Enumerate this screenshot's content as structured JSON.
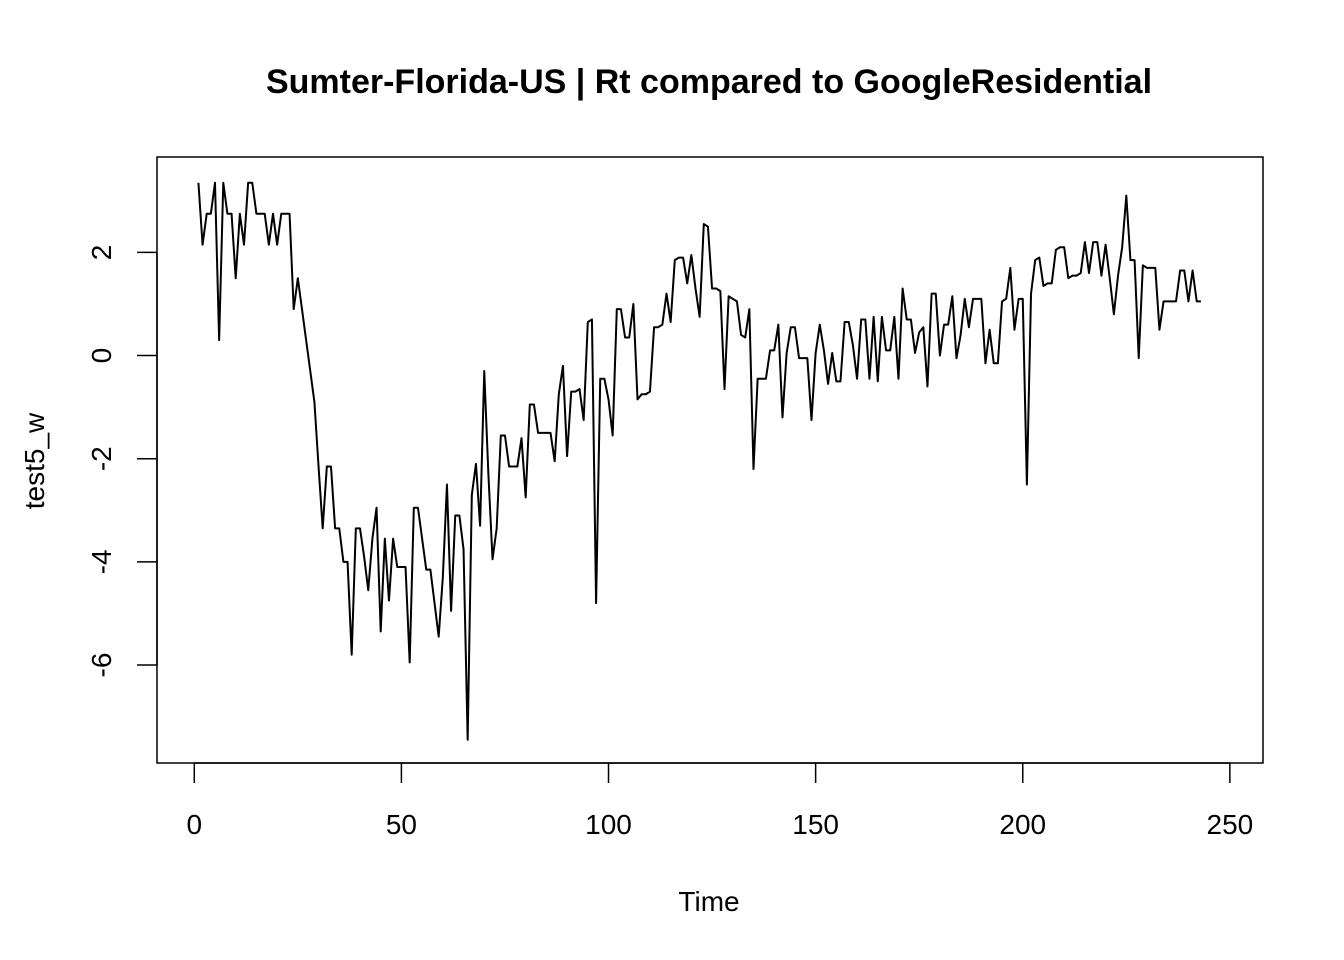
{
  "chart_data": {
    "type": "line",
    "title": "Sumter-Florida-US | Rt compared to GoogleResidential",
    "xlabel": "Time",
    "ylabel": "test5_w",
    "xlim": [
      -9,
      258
    ],
    "ylim": [
      -7.9,
      3.85
    ],
    "x_ticks": [
      0,
      50,
      100,
      150,
      200,
      250
    ],
    "y_ticks": [
      -6,
      -4,
      -2,
      0,
      2
    ],
    "x_tick_labels": [
      "0",
      "50",
      "100",
      "150",
      "200",
      "250"
    ],
    "y_tick_labels": [
      "-6",
      "-4",
      "-2",
      "0",
      "2"
    ],
    "grid": false,
    "legend": "none",
    "line_color": "#000000",
    "series": [
      {
        "values": [
          3.35,
          2.15,
          2.75,
          2.75,
          3.35,
          0.3,
          3.35,
          2.75,
          2.75,
          1.5,
          2.75,
          2.15,
          3.35,
          3.35,
          2.75,
          2.75,
          2.75,
          2.15,
          2.75,
          2.15,
          2.75,
          2.75,
          2.75,
          0.9,
          1.5,
          0.9,
          0.3,
          -0.3,
          -0.9,
          -2.15,
          -3.35,
          -2.15,
          -2.15,
          -3.35,
          -3.35,
          -4.0,
          -4.0,
          -5.8,
          -3.35,
          -3.35,
          -3.9,
          -4.55,
          -3.55,
          -2.95,
          -5.35,
          -3.55,
          -4.75,
          -3.55,
          -4.1,
          -4.1,
          -4.1,
          -5.95,
          -2.95,
          -2.95,
          -3.55,
          -4.15,
          -4.15,
          -4.8,
          -5.45,
          -4.3,
          -2.5,
          -4.95,
          -3.1,
          -3.1,
          -3.75,
          -7.45,
          -2.7,
          -2.1,
          -3.3,
          -0.3,
          -2.3,
          -3.95,
          -3.35,
          -1.55,
          -1.55,
          -2.15,
          -2.15,
          -2.15,
          -1.6,
          -2.75,
          -0.95,
          -0.95,
          -1.5,
          -1.5,
          -1.5,
          -1.5,
          -2.05,
          -0.75,
          -0.2,
          -1.95,
          -0.7,
          -0.7,
          -0.65,
          -1.25,
          0.65,
          0.7,
          -4.8,
          -0.45,
          -0.45,
          -0.85,
          -1.55,
          0.9,
          0.9,
          0.35,
          0.35,
          1.0,
          -0.85,
          -0.75,
          -0.75,
          -0.7,
          0.55,
          0.55,
          0.6,
          1.2,
          0.65,
          1.85,
          1.9,
          1.9,
          1.4,
          1.95,
          1.3,
          0.75,
          2.55,
          2.5,
          1.3,
          1.3,
          1.25,
          -0.65,
          1.15,
          1.1,
          1.05,
          0.4,
          0.35,
          0.9,
          -2.2,
          -0.45,
          -0.45,
          -0.45,
          0.1,
          0.1,
          0.6,
          -1.2,
          0.05,
          0.55,
          0.55,
          -0.05,
          -0.05,
          -0.05,
          -1.25,
          0.05,
          0.6,
          0.1,
          -0.55,
          0.05,
          -0.5,
          -0.5,
          0.65,
          0.65,
          0.2,
          -0.45,
          0.7,
          0.7,
          -0.45,
          0.75,
          -0.5,
          0.75,
          0.1,
          0.1,
          0.75,
          -0.45,
          1.3,
          0.7,
          0.7,
          0.05,
          0.45,
          0.55,
          -0.6,
          1.2,
          1.2,
          0.0,
          0.6,
          0.6,
          1.15,
          -0.05,
          0.4,
          1.1,
          0.55,
          1.1,
          1.1,
          1.1,
          -0.15,
          0.5,
          -0.15,
          -0.15,
          1.05,
          1.1,
          1.7,
          0.5,
          1.1,
          1.1,
          -2.5,
          1.2,
          1.85,
          1.9,
          1.35,
          1.4,
          1.4,
          2.05,
          2.1,
          2.1,
          1.5,
          1.55,
          1.55,
          1.6,
          2.2,
          1.6,
          2.2,
          2.2,
          1.55,
          2.15,
          1.5,
          0.8,
          1.55,
          2.1,
          3.1,
          1.85,
          1.85,
          -0.05,
          1.75,
          1.7,
          1.7,
          1.7,
          0.5,
          1.05,
          1.05,
          1.05,
          1.05,
          1.65,
          1.65,
          1.05,
          1.65,
          1.05,
          1.05
        ]
      }
    ]
  }
}
